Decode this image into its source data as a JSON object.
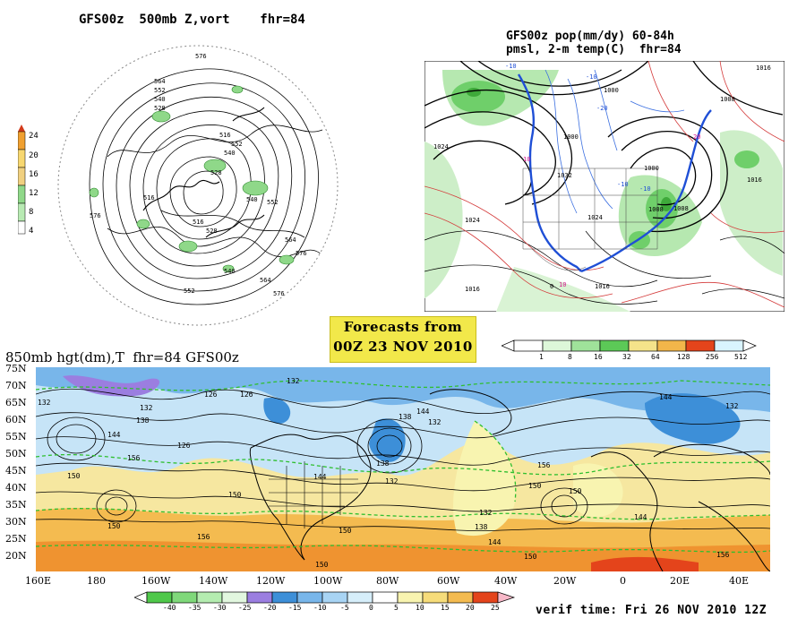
{
  "panel_polar": {
    "title": "GFS00z  500mb Z,vort    fhr=84",
    "contour_labels": [
      "576",
      "564",
      "552",
      "540",
      "528",
      "516",
      "552",
      "540",
      "528",
      "516",
      "540",
      "552",
      "564",
      "576",
      "516",
      "528",
      "540",
      "552",
      "564",
      "576",
      "576"
    ],
    "scale_labels": [
      "24",
      "20",
      "16",
      "12",
      "8",
      "4"
    ],
    "scale_colors": [
      "#d33a1a",
      "#f0a030",
      "#f7d770",
      "#8fd889",
      "#5dc05a",
      "#ffffff"
    ]
  },
  "panel_na": {
    "title_line1": "GFS00z pop(mm/dy) 60-84h",
    "title_line2": "pmsl, 2-m temp(C)  fhr=84",
    "labels": [
      "1000",
      "1016",
      "1024",
      "1008",
      "1016",
      "1024",
      "1000",
      "1008",
      "1016",
      "1024",
      "1032",
      "1016",
      "1008",
      "1000",
      "-10",
      "-20",
      "-10",
      "10",
      "0",
      "-10",
      "-10",
      "10",
      "20"
    ]
  },
  "banner": {
    "line1": "Forecasts from",
    "line2": "00Z 23 NOV 2010"
  },
  "precip_scale": {
    "labels": [
      "1",
      "8",
      "16",
      "32",
      "64",
      "128",
      "256",
      "512"
    ],
    "colors": [
      "#ddf7d9",
      "#9fe29a",
      "#5cc957",
      "#f4e38a",
      "#f2b64a",
      "#f08a1e",
      "#e4441b",
      "#d9f4ff"
    ]
  },
  "panel_global": {
    "title": "850mb hgt(dm),T  fhr=84 GFS00z",
    "lat_labels": [
      "75N",
      "70N",
      "65N",
      "60N",
      "55N",
      "50N",
      "45N",
      "40N",
      "35N",
      "30N",
      "25N",
      "20N"
    ],
    "lon_labels": [
      "160E",
      "180",
      "160W",
      "140W",
      "120W",
      "100W",
      "80W",
      "60W",
      "40W",
      "20W",
      "0",
      "20E",
      "40E"
    ],
    "contour_labels": [
      "132",
      "126",
      "126",
      "132",
      "144",
      "138",
      "132",
      "144",
      "132",
      "126",
      "138",
      "132",
      "144",
      "150",
      "156",
      "144",
      "150",
      "138",
      "132",
      "150",
      "144",
      "156",
      "150",
      "150",
      "156",
      "138",
      "132",
      "144",
      "150",
      "150",
      "156",
      "150"
    ]
  },
  "temp_scale": {
    "labels": [
      "-40",
      "-35",
      "-30",
      "-25",
      "-20",
      "-15",
      "-10",
      "-5",
      "0",
      "5",
      "10",
      "15",
      "20",
      "25"
    ],
    "colors": [
      "#4fc84a",
      "#7fd87a",
      "#b4ecb0",
      "#e2f7df",
      "#9b7ee0",
      "#3d8fd8",
      "#78b6ea",
      "#a8d4f4",
      "#d6eefa",
      "#f8f4b0",
      "#f6dc7a",
      "#f4bb50",
      "#ef9330",
      "#e4441b",
      "#f7b8c8"
    ]
  },
  "verif": "verif time: Fri 26 NOV 2010 12Z"
}
